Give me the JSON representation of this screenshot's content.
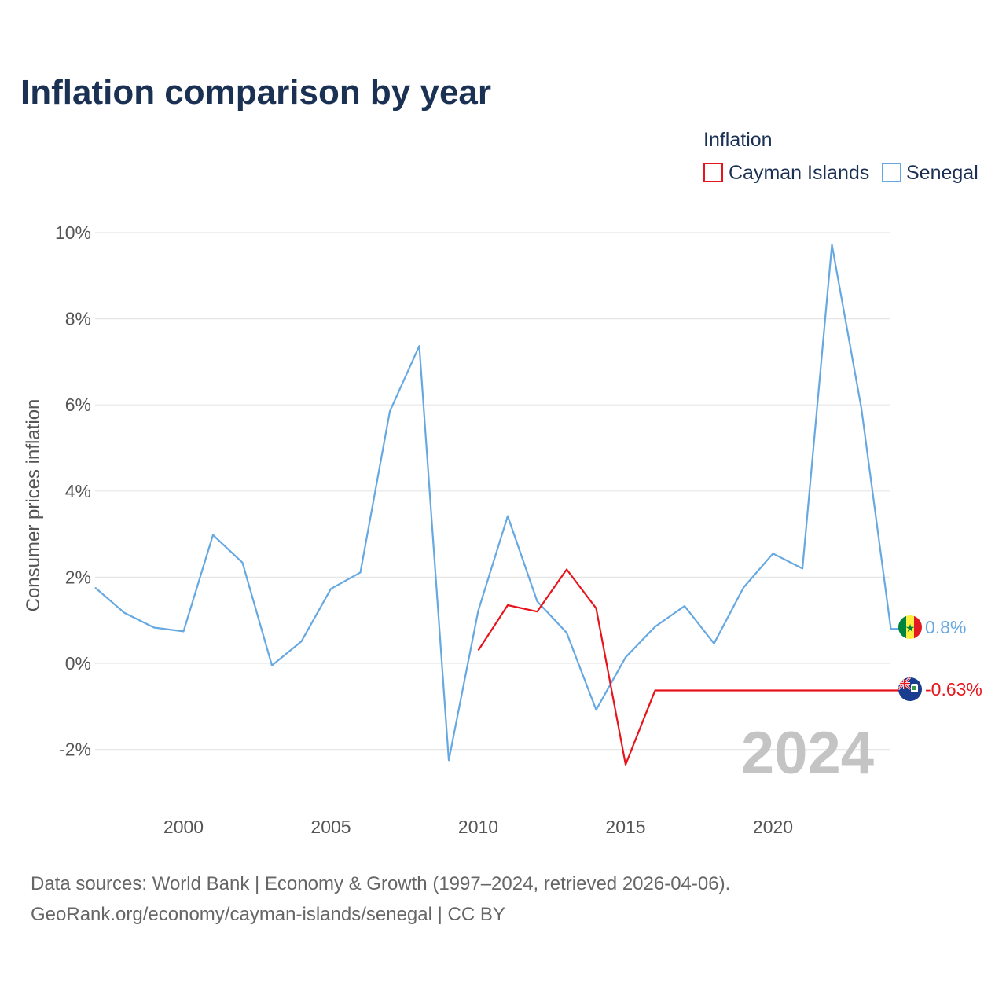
{
  "title": "Inflation comparison by year",
  "legend": {
    "title": "Inflation",
    "items": [
      {
        "label": "Cayman Islands",
        "color": "#e8141c"
      },
      {
        "label": "Senegal",
        "color": "#66a8e2"
      }
    ]
  },
  "year_mark": "2024",
  "end_labels": {
    "senegal": "0.8%",
    "cayman": "-0.63%"
  },
  "source": {
    "line1": "Data sources: World Bank | Economy & Growth (1997–2024, retrieved 2026-04-06).",
    "line2": "GeoRank.org/economy/cayman-islands/senegal | CC BY"
  },
  "chart_data": {
    "type": "line",
    "title": "Inflation comparison by year",
    "xlabel": "",
    "ylabel": "Consumer prices inflation",
    "xlim": [
      1997,
      2024
    ],
    "ylim": [
      -3,
      10
    ],
    "x_ticks": [
      2000,
      2005,
      2010,
      2015,
      2020
    ],
    "y_ticks": [
      {
        "value": 10,
        "label": "10%"
      },
      {
        "value": 8,
        "label": "8%"
      },
      {
        "value": 6,
        "label": "6%"
      },
      {
        "value": 4,
        "label": "4%"
      },
      {
        "value": 2,
        "label": "2%"
      },
      {
        "value": 0,
        "label": "0%"
      },
      {
        "value": -2,
        "label": "-2%"
      }
    ],
    "grid": true,
    "legend_position": "top-right",
    "series": [
      {
        "name": "Cayman Islands",
        "color": "#e8141c",
        "x": [
          2010,
          2011,
          2012,
          2013,
          2014,
          2015,
          2016,
          2017,
          2018,
          2019,
          2020,
          2021,
          2022,
          2023,
          2024
        ],
        "values": [
          0.3,
          1.35,
          1.2,
          2.18,
          1.28,
          -2.35,
          -0.63,
          -0.63,
          -0.63,
          -0.63,
          -0.63,
          -0.63,
          -0.63,
          -0.63,
          -0.63
        ]
      },
      {
        "name": "Senegal",
        "color": "#66a8e2",
        "x": [
          1997,
          1998,
          1999,
          2000,
          2001,
          2002,
          2003,
          2004,
          2005,
          2006,
          2007,
          2008,
          2009,
          2010,
          2011,
          2012,
          2013,
          2014,
          2015,
          2016,
          2017,
          2018,
          2019,
          2020,
          2021,
          2022,
          2023,
          2024
        ],
        "values": [
          1.76,
          1.17,
          0.83,
          0.74,
          2.98,
          2.34,
          -0.05,
          0.51,
          1.73,
          2.11,
          5.85,
          7.37,
          -2.25,
          1.22,
          3.42,
          1.44,
          0.71,
          -1.08,
          0.14,
          0.85,
          1.33,
          0.46,
          1.76,
          2.55,
          2.2,
          9.72,
          5.92,
          0.8
        ]
      }
    ]
  }
}
